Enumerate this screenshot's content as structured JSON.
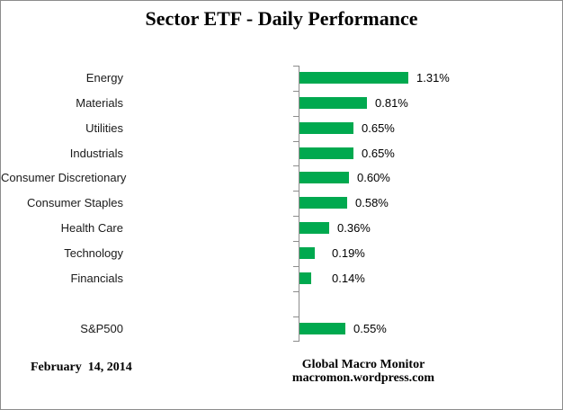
{
  "page": {
    "title": "Sector ETF - Daily Performance",
    "footer": {
      "date": "February  14, 2014",
      "attribution": [
        "Global Macro Monitor",
        "macromon.wordpress.com"
      ]
    }
  },
  "chart_data": {
    "type": "bar",
    "orientation": "horizontal",
    "title": "Sector ETF - Daily Performance",
    "categories": [
      "Energy",
      "Materials",
      "Utilities",
      "Industrials",
      "Consumer Discretionary",
      "Consumer Staples",
      "Health Care",
      "Technology",
      "Financials",
      "",
      "S&P500"
    ],
    "values": [
      1.31,
      0.81,
      0.65,
      0.65,
      0.6,
      0.58,
      0.36,
      0.19,
      0.14,
      null,
      0.55
    ],
    "value_labels": [
      "1.31%",
      "0.81%",
      "0.65%",
      "0.65%",
      "0.60%",
      "0.58%",
      "0.36%",
      "0.19%",
      "0.14%",
      "",
      "0.55%"
    ],
    "xlabel": "",
    "ylabel": "",
    "xlim": [
      0,
      1.5
    ],
    "gridlines": false,
    "legend": false,
    "bar_color": "#00A94F",
    "axis_color": "#8C8C8C",
    "label_color": "#000000"
  }
}
